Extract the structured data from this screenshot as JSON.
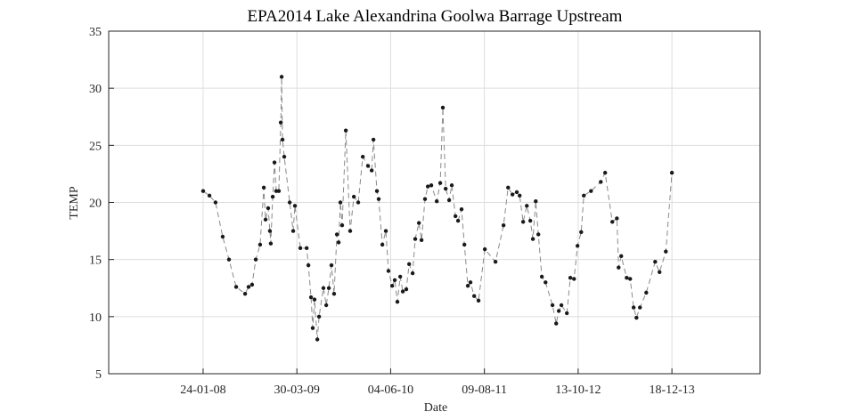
{
  "chart_data": {
    "type": "line",
    "title": "EPA2014 Lake Alexandrina Goolwa Barrage Upstream",
    "xlabel": "Date",
    "ylabel": "TEMP",
    "x": [
      "2008-01-24",
      "2008-02-22",
      "2008-03-21",
      "2008-04-23",
      "2008-05-22",
      "2008-06-24",
      "2008-08-04",
      "2008-08-20",
      "2008-09-05",
      "2008-09-22",
      "2008-10-12",
      "2008-10-29",
      "2008-11-06",
      "2008-11-18",
      "2008-11-26",
      "2008-11-30",
      "2008-12-09",
      "2008-12-17",
      "2008-12-25",
      "2009-01-06",
      "2009-01-15",
      "2009-01-19",
      "2009-01-23",
      "2009-01-31",
      "2009-02-25",
      "2009-03-13",
      "2009-03-21",
      "2009-04-15",
      "2009-05-14",
      "2009-05-22",
      "2009-06-03",
      "2009-06-11",
      "2009-06-19",
      "2009-07-02",
      "2009-07-10",
      "2009-07-30",
      "2009-08-12",
      "2009-08-24",
      "2009-09-05",
      "2009-09-17",
      "2009-09-30",
      "2009-10-08",
      "2009-10-16",
      "2009-10-24",
      "2009-11-10",
      "2009-11-30",
      "2009-12-17",
      "2010-01-06",
      "2010-01-27",
      "2010-02-20",
      "2010-03-09",
      "2010-03-17",
      "2010-04-02",
      "2010-04-10",
      "2010-04-27",
      "2010-05-13",
      "2010-05-25",
      "2010-06-11",
      "2010-06-23",
      "2010-07-05",
      "2010-07-18",
      "2010-07-30",
      "2010-08-15",
      "2010-08-28",
      "2010-09-13",
      "2010-09-25",
      "2010-10-12",
      "2010-10-24",
      "2010-11-09",
      "2010-11-22",
      "2010-12-08",
      "2011-01-02",
      "2011-01-18",
      "2011-01-30",
      "2011-02-12",
      "2011-02-28",
      "2011-03-12",
      "2011-03-29",
      "2011-04-10",
      "2011-04-26",
      "2011-05-09",
      "2011-05-25",
      "2011-06-06",
      "2011-06-23",
      "2011-07-13",
      "2011-08-11",
      "2011-09-29",
      "2011-11-05",
      "2011-11-26",
      "2011-12-16",
      "2012-01-05",
      "2012-01-18",
      "2012-02-03",
      "2012-02-20",
      "2012-03-07",
      "2012-03-19",
      "2012-04-01",
      "2012-04-13",
      "2012-04-29",
      "2012-05-16",
      "2012-06-17",
      "2012-07-04",
      "2012-07-16",
      "2012-07-28",
      "2012-08-22",
      "2012-09-07",
      "2012-09-24",
      "2012-10-10",
      "2012-10-27",
      "2012-11-08",
      "2012-12-11",
      "2013-01-25",
      "2013-02-14",
      "2013-03-19",
      "2013-04-09",
      "2013-04-17",
      "2013-04-29",
      "2013-05-24",
      "2013-06-09",
      "2013-06-25",
      "2013-07-08",
      "2013-07-24",
      "2013-08-22",
      "2013-10-02",
      "2013-10-22",
      "2013-11-20",
      "2013-12-18"
    ],
    "values": [
      21,
      20.6,
      20,
      17,
      15,
      12.6,
      12,
      12.6,
      12.8,
      15,
      16.3,
      21.3,
      18.5,
      19.5,
      17.5,
      16.4,
      20.5,
      23.5,
      21,
      21,
      27,
      31,
      25.5,
      24,
      20,
      17.5,
      19.7,
      16,
      16,
      14.5,
      11.7,
      9,
      11.5,
      8,
      10,
      12.5,
      11,
      12.5,
      14.5,
      12,
      17.2,
      16.5,
      20,
      18,
      26.3,
      17.5,
      20.5,
      20,
      24,
      23.2,
      22.8,
      25.5,
      21,
      20.3,
      16.3,
      17.5,
      14,
      12.7,
      13.2,
      11.3,
      13.5,
      12.2,
      12.4,
      14.6,
      13.8,
      16.8,
      18.2,
      16.7,
      20.3,
      21.4,
      21.5,
      20.1,
      21.7,
      28.3,
      21.2,
      20.2,
      21.5,
      18.8,
      18.4,
      19.4,
      16.3,
      12.7,
      13,
      11.8,
      11.4,
      15.9,
      14.8,
      18,
      21.3,
      20.7,
      20.9,
      20.6,
      18.3,
      19.7,
      18.4,
      16.8,
      20.1,
      17.2,
      13.5,
      13,
      11,
      9.4,
      10.5,
      11,
      10.3,
      13.4,
      13.3,
      16.2,
      17.4,
      20.6,
      21,
      21.8,
      22.6,
      18.3,
      18.6,
      14.3,
      15.3,
      13.4,
      13.3,
      10.8,
      9.9,
      10.8,
      12.1,
      14.8,
      13.9,
      15.7,
      22.6
    ],
    "color": "#8a8a8a",
    "marker_color": "#1a1a1a",
    "xlim": [
      "2006-11-16",
      "2015-01-27"
    ],
    "xticks": [
      {
        "value": "2008-01-24",
        "label": "24-01-08"
      },
      {
        "value": "2009-03-30",
        "label": "30-03-09"
      },
      {
        "value": "2010-06-04",
        "label": "04-06-10"
      },
      {
        "value": "2011-08-09",
        "label": "09-08-11"
      },
      {
        "value": "2012-10-13",
        "label": "13-10-12"
      },
      {
        "value": "2013-12-18",
        "label": "18-12-13"
      }
    ],
    "ylim": [
      5,
      35
    ],
    "yticks": [
      5,
      10,
      15,
      20,
      25,
      30,
      35
    ],
    "grid": true
  }
}
